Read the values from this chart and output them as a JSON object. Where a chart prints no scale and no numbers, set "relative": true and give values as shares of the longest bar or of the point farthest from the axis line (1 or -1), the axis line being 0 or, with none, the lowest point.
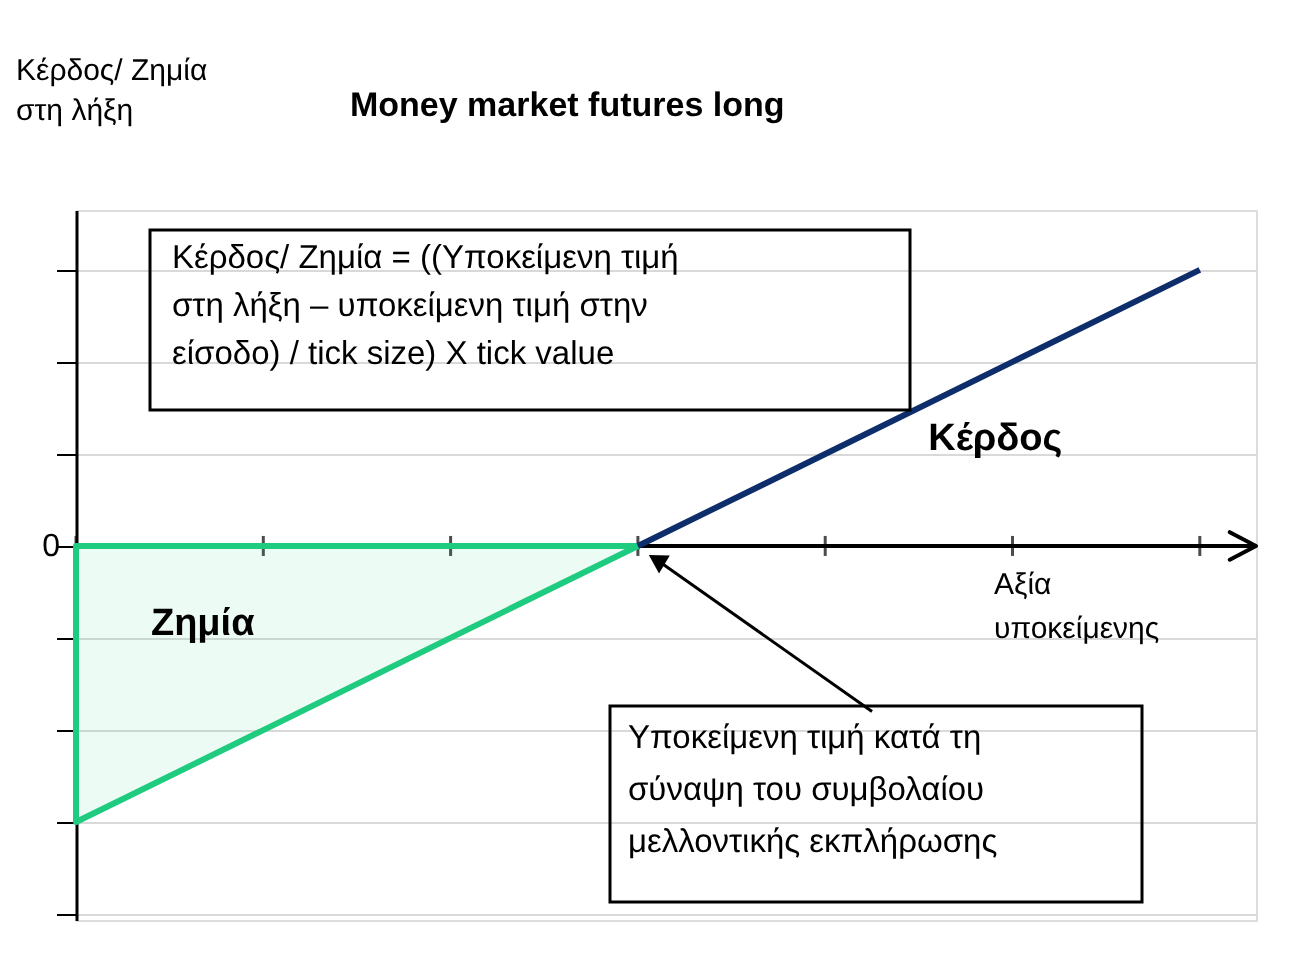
{
  "chart_data": {
    "type": "line",
    "title": "Money market futures long",
    "ylabel": "Κέρδος/ Ζημία στη λήξη",
    "xlabel": "Αξία υποκείμενης",
    "relative": true,
    "grid": "y",
    "legend": false,
    "categories": [
      null,
      null,
      null,
      null,
      null,
      null,
      null
    ],
    "series": [
      {
        "name": "Ζημία",
        "type": "area",
        "color": "#1fcb7e",
        "values": [
          -1,
          -0.667,
          -0.333,
          0,
          null,
          null,
          null
        ]
      },
      {
        "name": "Κέρδος",
        "type": "line",
        "color": "#0d2d6b",
        "values": [
          null,
          null,
          null,
          0,
          0.333,
          0.667,
          1
        ]
      }
    ],
    "annotations": [
      "Κέρδος/ Ζημία = ((Υποκείμενη τιμή στη λήξη – υποκείμενη τιμή στην είσοδο) / tick size) X tick value",
      "Υποκείμενη τιμή κατά τη σύναψη του συμβολαίου μελλοντικής εκπλήρωσης",
      "0"
    ]
  }
}
